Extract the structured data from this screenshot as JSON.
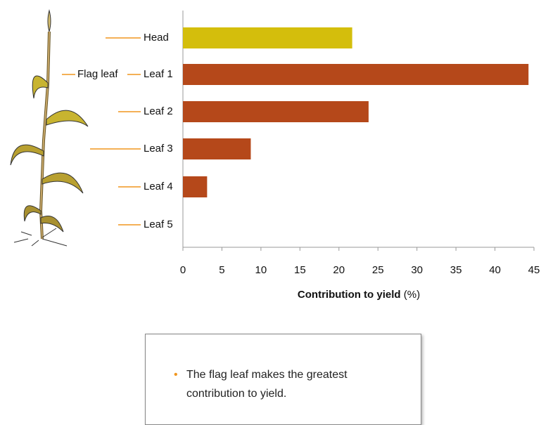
{
  "chart_data": {
    "type": "hbar",
    "categories": [
      "Head",
      "Leaf 1",
      "Leaf 2",
      "Leaf 3",
      "Leaf 4",
      "Leaf 5"
    ],
    "values": [
      21.7,
      44.3,
      23.8,
      8.7,
      3.1,
      0
    ],
    "colors": [
      "#d4be0c",
      "#b5481a",
      "#b5481a",
      "#b5481a",
      "#b5481a",
      "#b5481a"
    ],
    "xlim": [
      0,
      45
    ],
    "xticks": [
      0,
      5,
      10,
      15,
      20,
      25,
      30,
      35,
      40,
      45
    ],
    "xlabel": "Contribution to yield",
    "xlabel_unit": "(%)",
    "annotation": "Flag leaf"
  },
  "text_box": {
    "bullets": [
      "The flag leaf makes the greatest contribution to yield."
    ]
  }
}
